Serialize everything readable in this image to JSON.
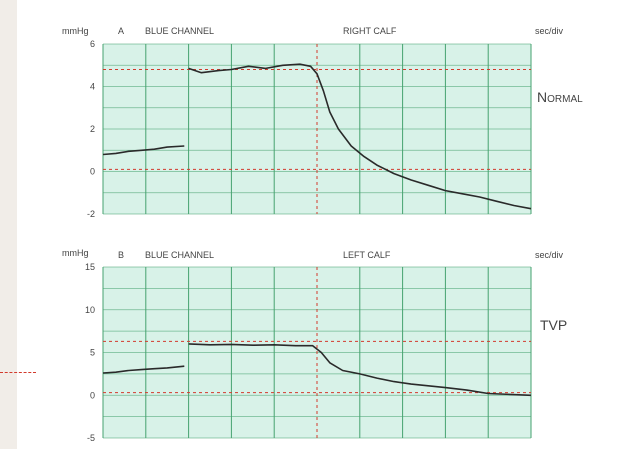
{
  "colors": {
    "grid_bg": "#d8f2e8",
    "grid_line": "#46a26f",
    "ref_line": "#d23a2c",
    "trace": "#2a2a2a",
    "text": "#444444"
  },
  "chart_data": [
    {
      "type": "line",
      "panel": "A",
      "channel": "BLUE CHANNEL",
      "title": "RIGHT CALF",
      "ylabel": "mmHg",
      "xunit": "sec/div",
      "annotation": "Normal",
      "ylim": [
        -2,
        6
      ],
      "yticks": [
        6,
        4,
        2,
        0,
        -2
      ],
      "reference_lines": [
        4.8,
        0.1
      ],
      "event_division": 5,
      "divisions": 10,
      "series": [
        {
          "x": [
            0,
            0.3,
            0.6,
            0.9,
            1.2,
            1.5,
            1.9
          ],
          "y": [
            0.8,
            0.85,
            0.95,
            1.0,
            1.05,
            1.15,
            1.2
          ]
        },
        {
          "x": [
            2.0,
            2.3,
            2.7,
            3.0,
            3.4,
            3.8,
            4.2,
            4.6,
            4.85,
            5.0,
            5.15,
            5.3,
            5.5,
            5.8,
            6.1,
            6.4,
            6.8,
            7.2,
            7.6,
            8.0,
            8.4,
            8.8,
            9.2,
            9.6,
            10.0
          ],
          "y": [
            4.85,
            4.65,
            4.75,
            4.8,
            4.95,
            4.85,
            5.0,
            5.05,
            4.95,
            4.6,
            3.8,
            2.8,
            2.0,
            1.2,
            0.7,
            0.3,
            -0.1,
            -0.4,
            -0.65,
            -0.9,
            -1.05,
            -1.2,
            -1.4,
            -1.6,
            -1.75
          ]
        }
      ]
    },
    {
      "type": "line",
      "panel": "B",
      "channel": "BLUE CHANNEL",
      "title": "LEFT CALF",
      "ylabel": "mmHg",
      "xunit": "sec/div",
      "annotation": "TVP",
      "ylim": [
        -5,
        15
      ],
      "yticks": [
        15,
        10,
        5,
        0,
        -5
      ],
      "reference_lines": [
        6.3,
        0.3
      ],
      "event_division": 5,
      "divisions": 10,
      "series": [
        {
          "x": [
            0,
            0.3,
            0.6,
            0.9,
            1.2,
            1.5,
            1.9
          ],
          "y": [
            2.6,
            2.7,
            2.9,
            3.0,
            3.1,
            3.2,
            3.4
          ]
        },
        {
          "x": [
            2.0,
            2.5,
            3.0,
            3.5,
            4.0,
            4.5,
            4.9,
            5.1,
            5.3,
            5.6,
            6.0,
            6.4,
            6.8,
            7.2,
            7.6,
            8.0,
            8.5,
            9.0,
            9.5,
            10.0
          ],
          "y": [
            6.0,
            5.9,
            5.95,
            5.85,
            5.9,
            5.8,
            5.8,
            5.0,
            3.8,
            2.9,
            2.5,
            2.0,
            1.6,
            1.3,
            1.1,
            0.9,
            0.6,
            0.2,
            0.1,
            0.0
          ]
        }
      ]
    }
  ]
}
